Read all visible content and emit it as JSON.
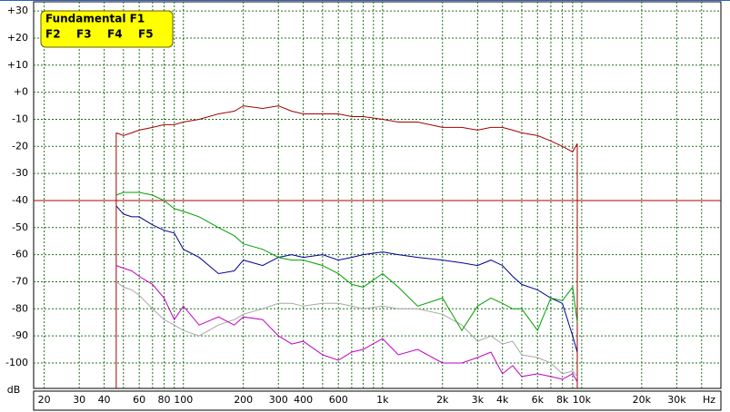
{
  "chart_data": {
    "type": "line",
    "x_label": "Hz",
    "y_label": "dB",
    "log_x": true,
    "grid": true,
    "legend": "top-left",
    "xlim": [
      17.7,
      50000
    ],
    "ylim": [
      -109.4,
      33.4
    ],
    "xticks": [
      20,
      30,
      40,
      60,
      80,
      100,
      200,
      300,
      400,
      600,
      {
        "value": 1000,
        "label": "1k"
      },
      {
        "value": 2000,
        "label": "2k"
      },
      {
        "value": 3000,
        "label": "3k"
      },
      {
        "value": 4000,
        "label": "4k"
      },
      {
        "value": 6000,
        "label": "6k"
      },
      {
        "value": 8000,
        "label": "8k"
      },
      {
        "value": 10000,
        "label": "10k"
      },
      {
        "value": 20000,
        "label": "20k"
      },
      {
        "value": 30000,
        "label": "30k"
      }
    ],
    "xminor": [
      50,
      70,
      90,
      500,
      700,
      800,
      900,
      5000,
      7000,
      9000,
      40000
    ],
    "yticks": [
      {
        "value": 30,
        "label": "+30"
      },
      {
        "value": 20,
        "label": "+20"
      },
      {
        "value": 10,
        "label": "+10"
      },
      {
        "value": 0,
        "label": "+0"
      },
      -10,
      -20,
      -30,
      -40,
      -50,
      -60,
      -70,
      -80,
      -90,
      -100
    ],
    "threshold": -40,
    "threshold_color": "#b00000",
    "x": [
      46,
      50,
      55,
      60,
      70,
      80,
      90,
      100,
      120,
      150,
      180,
      200,
      250,
      300,
      350,
      400,
      500,
      600,
      700,
      800,
      1000,
      1200,
      1500,
      2000,
      2500,
      3000,
      3500,
      4000,
      4500,
      5000,
      6000,
      7000,
      8000,
      9000,
      9500
    ],
    "series": [
      {
        "name": "Fundamental F1",
        "color": "#a00000",
        "values": [
          -15,
          -16,
          -15,
          -14,
          -13,
          -12,
          -12,
          -11,
          -10,
          -8,
          -7,
          -5,
          -6,
          -5,
          -7,
          -8,
          -8,
          -8,
          -9,
          -9,
          -10,
          -11,
          -11,
          -13,
          -13,
          -14,
          -13,
          -13,
          -14,
          -15,
          -16,
          -18,
          -20,
          -22,
          -19
        ]
      },
      {
        "name": "F2",
        "color": "#00a000",
        "values": [
          -38,
          -37,
          -37,
          -37,
          -38,
          -40,
          -43,
          -44,
          -46,
          -50,
          -53,
          -56,
          -58,
          -61,
          -62,
          -62,
          -64,
          -67,
          -71,
          -72,
          -67,
          -72,
          -79,
          -76,
          -88,
          -79,
          -76,
          -78,
          -80,
          -80,
          -88,
          -76,
          -77,
          -72,
          -85
        ]
      },
      {
        "name": "F3",
        "color": "#000090",
        "values": [
          -42,
          -45,
          -46,
          -46,
          -49,
          -51,
          -52,
          -58,
          -61,
          -67,
          -66,
          -62,
          -64,
          -61,
          -60,
          -61,
          -60,
          -62,
          -61,
          -60,
          -59,
          -60,
          -61,
          -62,
          -63,
          -64,
          -62,
          -64,
          -68,
          -71,
          -73,
          -76,
          -78,
          -90,
          -96
        ]
      },
      {
        "name": "F4",
        "color": "#c000c0",
        "values": [
          -64,
          -65,
          -66,
          -68,
          -71,
          -76,
          -84,
          -79,
          -86,
          -83,
          -86,
          -83,
          -84,
          -90,
          -93,
          -92,
          -97,
          -99,
          -96,
          -95,
          -91,
          -97,
          -95,
          -100,
          -100,
          -98,
          -96,
          -104,
          -101,
          -105,
          -104,
          -105,
          -106,
          -104,
          -107
        ]
      },
      {
        "name": "F5",
        "color": "#a8a8a8",
        "values": [
          -70,
          -72,
          -73,
          -75,
          -80,
          -84,
          -86,
          -88,
          -90,
          -86,
          -84,
          -82,
          -80,
          -78,
          -78,
          -79,
          -78,
          -78,
          -79,
          -80,
          -79,
          -80,
          -80,
          -82,
          -86,
          -92,
          -90,
          -93,
          -92,
          -97,
          -98,
          -100,
          -104,
          -103,
          -105
        ]
      }
    ]
  }
}
